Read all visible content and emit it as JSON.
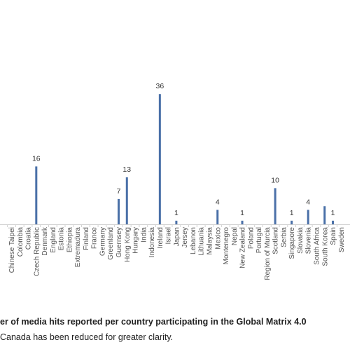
{
  "chart_data": {
    "type": "bar",
    "categories": [
      "Chinese Taipei",
      "Colombia",
      "Croatia",
      "Czech Republic",
      "Denmark",
      "England",
      "Estonia",
      "Ethiopia",
      "Extremadura",
      "Finland",
      "France",
      "Germany",
      "Greenland",
      "Guernsey",
      "Hong Kong",
      "Hungary",
      "India",
      "Indonesia",
      "Ireland",
      "Israel",
      "Japan",
      "Jersey",
      "Lebanon",
      "Lithuania",
      "Malaysia",
      "Mexico",
      "Montenegro",
      "Nepal",
      "New Zealand",
      "Poland",
      "Portugal",
      "Region of Murcia",
      "Scotland",
      "Serbia",
      "Singapore",
      "Slovakia",
      "Slovenia",
      "South Africa",
      "South Korea",
      "Spain",
      "Sweden"
    ],
    "values": [
      0,
      0,
      0,
      16,
      0,
      0,
      0,
      0,
      0,
      0,
      0,
      0,
      0,
      7,
      13,
      0,
      0,
      0,
      36,
      0,
      1,
      0,
      0,
      0,
      0,
      4,
      0,
      0,
      1,
      0,
      0,
      0,
      10,
      0,
      1,
      0,
      4,
      0,
      5,
      1,
      0
    ],
    "data_labels": {
      "Czech Republic": "16",
      "Guernsey": "7",
      "Hong Kong": "13",
      "Ireland": "36",
      "Japan": "1",
      "Mexico": "4",
      "New Zealand": "1",
      "Scotland": "10",
      "Singapore": "1",
      "Slovenia": "4",
      "Spain": "1"
    },
    "ylim": [
      0,
      62
    ],
    "bar_color": "#4a70a8",
    "grid": false,
    "legend": "none"
  },
  "caption": {
    "title": "er of media hits reported per country participating in the Global Matrix 4.0",
    "note": "Canada has been reduced for greater clarity."
  }
}
